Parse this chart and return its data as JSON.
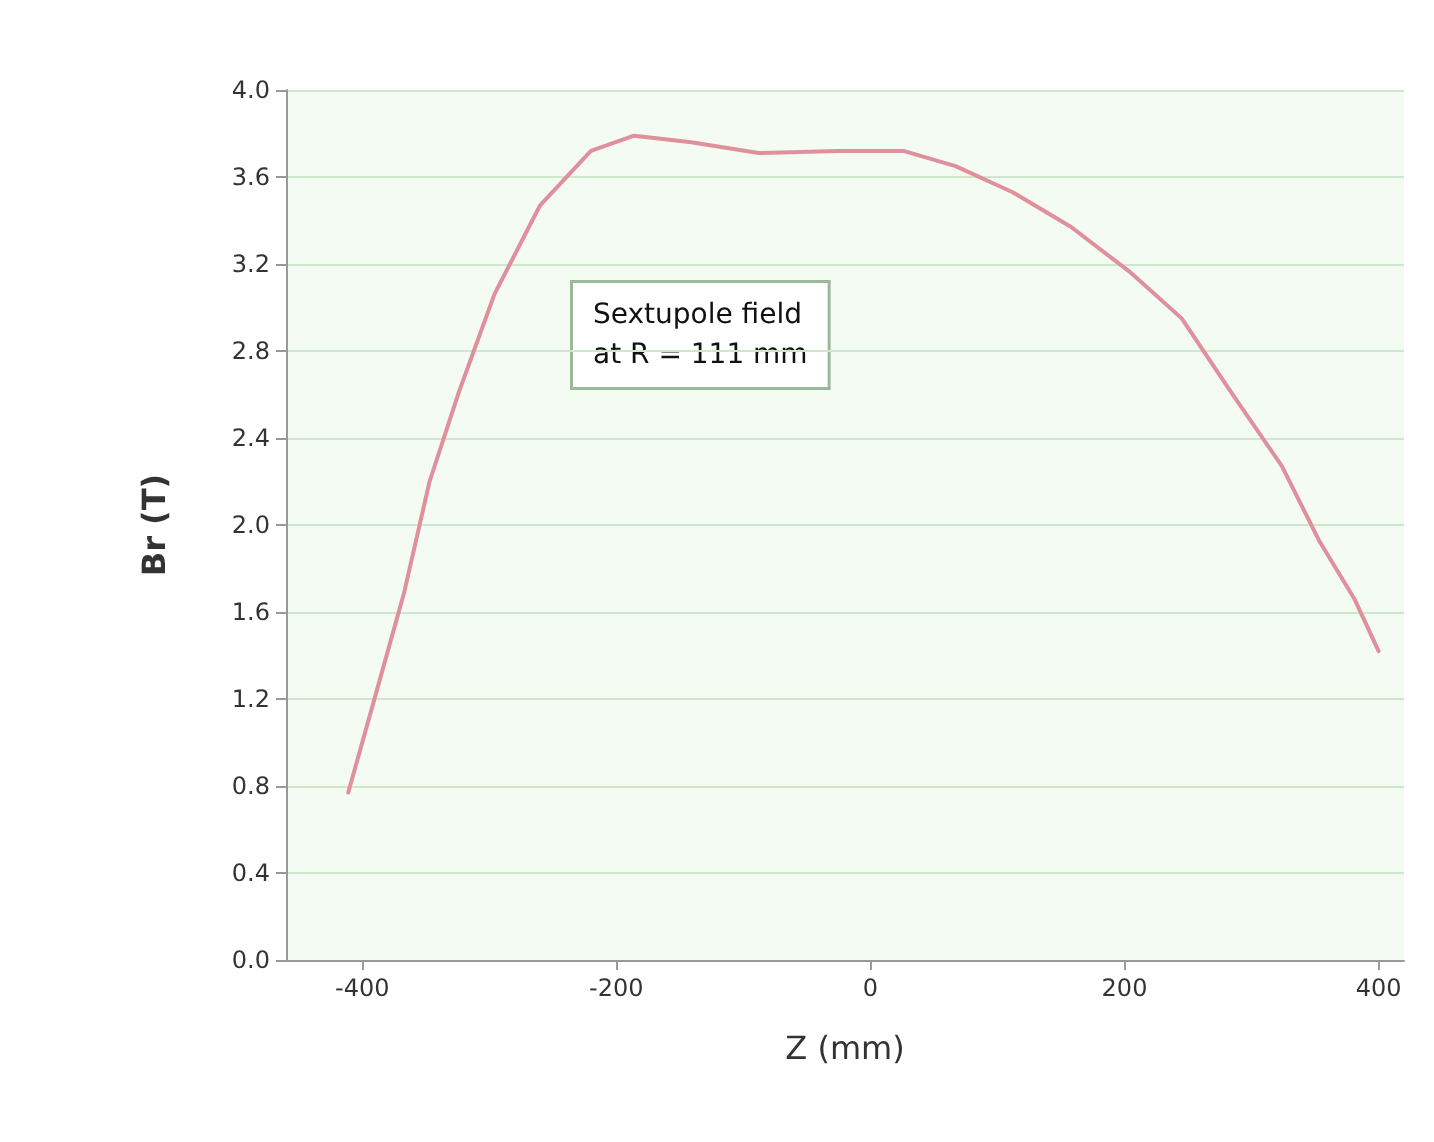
{
  "chart_data": {
    "type": "line",
    "xlabel": "Z (mm)",
    "ylabel": "Br (T)",
    "annotations": [
      "Sextupole field\nat R = 111 mm"
    ],
    "series": [
      {
        "color": "#e0909c",
        "x": [
          -411,
          -388,
          -367,
          -347,
          -324,
          -296,
          -260,
          -220,
          -186,
          -141,
          -88,
          -26,
          26,
          67,
          112,
          158,
          205,
          245,
          284,
          324,
          353,
          381,
          400
        ],
        "values": [
          0.77,
          1.25,
          1.69,
          2.2,
          2.61,
          3.06,
          3.47,
          3.72,
          3.79,
          3.76,
          3.71,
          3.72,
          3.72,
          3.65,
          3.53,
          3.37,
          3.16,
          2.95,
          2.61,
          2.27,
          1.93,
          1.66,
          1.42
        ]
      }
    ],
    "xlim": [
      -460,
      420
    ],
    "xticks": [
      -400,
      -200,
      0,
      200,
      400
    ],
    "ylim": [
      0,
      4
    ],
    "yticks": [
      {
        "value": 0,
        "label": "0.0"
      },
      {
        "value": 0.4,
        "label": "0.4"
      },
      {
        "value": 0.8,
        "label": "0.8"
      },
      {
        "value": 1.2,
        "label": "1.2"
      },
      {
        "value": 1.6,
        "label": "1.6"
      },
      {
        "value": 2,
        "label": "2.0"
      },
      {
        "value": 2.4,
        "label": "2.4"
      },
      {
        "value": 2.8,
        "label": "2.8"
      },
      {
        "value": 3.2,
        "label": "3.2"
      },
      {
        "value": 3.6,
        "label": "3.6"
      },
      {
        "value": 4,
        "label": "4.0"
      }
    ],
    "grid": "y",
    "marker": "none",
    "line_style": "solid"
  }
}
